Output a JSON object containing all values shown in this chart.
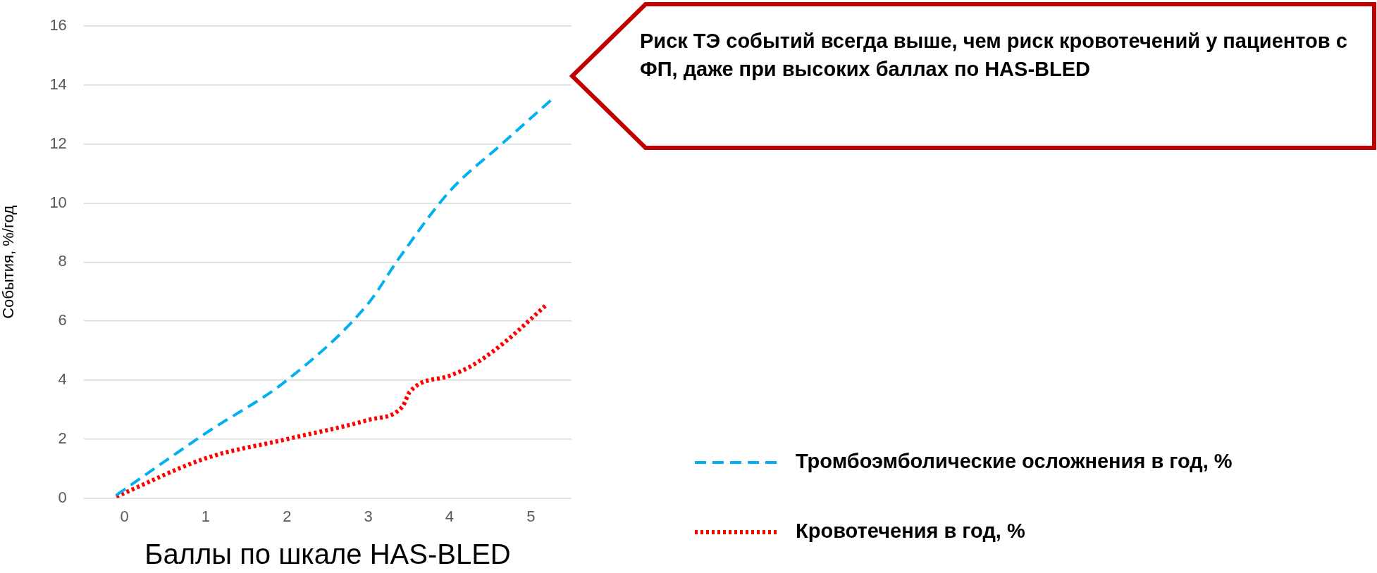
{
  "chart_data": {
    "type": "line",
    "xlabel": "Баллы по шкале HAS-BLED",
    "ylabel": "События, %/год",
    "annotations": [
      "Риск ТЭ событий всегда выше, чем риск кровотечений у пациентов с ФП, даже при высоких баллах по HAS-BLED"
    ],
    "series": [
      {
        "name": "Тромбоэмболические осложнения в год, %",
        "color": "#00b0f0",
        "line_style": "dashed",
        "x": [
          -0.1,
          1.0,
          2.0,
          3.0,
          3.37,
          4.0,
          4.64,
          5.25
        ],
        "values": [
          0.1,
          2.2,
          4.0,
          6.6,
          8.1,
          10.4,
          12.0,
          13.5
        ]
      },
      {
        "name": "Кровотечения в год, %",
        "color": "#ff0000",
        "line_style": "dotted",
        "x": [
          -0.1,
          1.0,
          2.0,
          3.0,
          3.42,
          3.51,
          4.0,
          4.25,
          4.64,
          5.19
        ],
        "values": [
          0.05,
          1.35,
          2.0,
          2.65,
          3.1,
          3.6,
          4.15,
          4.45,
          5.2,
          6.55
        ]
      }
    ],
    "xlim": [
      -0.5,
      5.5
    ],
    "xticks": [
      0,
      1,
      2,
      3,
      4,
      5
    ],
    "ylim": [
      0,
      16
    ],
    "yticks": [
      0,
      2,
      4,
      6,
      8,
      10,
      12,
      14,
      16
    ],
    "grid": "y",
    "legend": "bottom right",
    "marker": "none"
  }
}
